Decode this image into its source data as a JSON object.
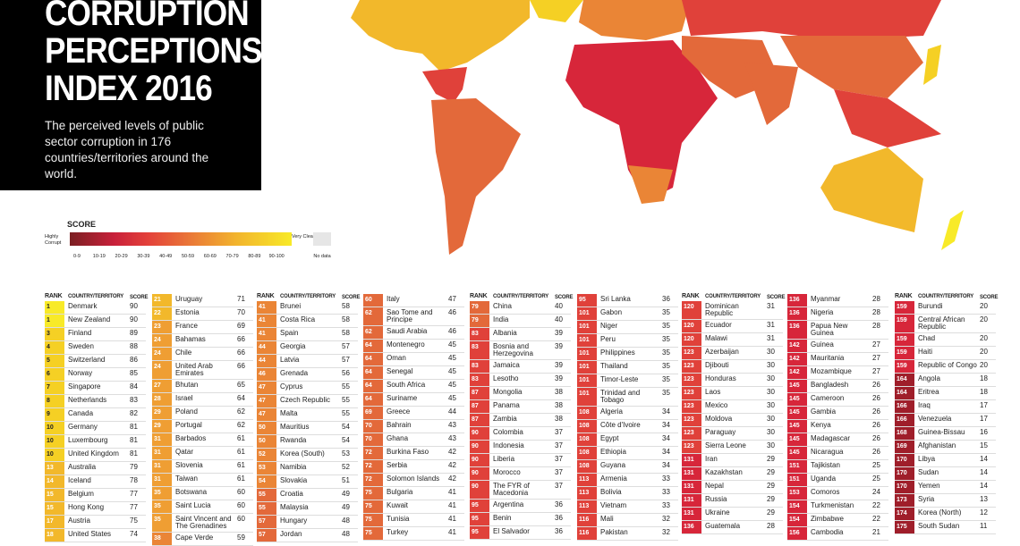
{
  "title": "CORRUPTION PERCEPTIONS INDEX 2016",
  "subtitle": "The perceived levels of public sector corruption in 176 countries/territories around the world.",
  "legend": {
    "title": "SCORE",
    "low": "Highly Corrupt",
    "high": "Very Clean",
    "no_data": "No data",
    "ranges": [
      "0-9",
      "10-19",
      "20-29",
      "30-39",
      "40-49",
      "50-59",
      "60-69",
      "70-79",
      "80-89",
      "90-100"
    ],
    "colors": [
      "#7b1f22",
      "#9f1e2a",
      "#d7263a",
      "#e0413a",
      "#e3693a",
      "#ea8536",
      "#ef9e33",
      "#f2b82b",
      "#f5d024",
      "#f8ea28"
    ],
    "no_data_color": "#e6e6e6"
  },
  "table": {
    "headers": {
      "rank": "RANK",
      "country": "COUNTRY/TERRITORY",
      "score": "SCORE"
    },
    "columns": [
      [
        [
          "1",
          "Denmark",
          90
        ],
        [
          "1",
          "New Zealand",
          90
        ],
        [
          "3",
          "Finland",
          89
        ],
        [
          "4",
          "Sweden",
          88
        ],
        [
          "5",
          "Switzerland",
          86
        ],
        [
          "6",
          "Norway",
          85
        ],
        [
          "7",
          "Singapore",
          84
        ],
        [
          "8",
          "Netherlands",
          83
        ],
        [
          "9",
          "Canada",
          82
        ],
        [
          "10",
          "Germany",
          81
        ],
        [
          "10",
          "Luxembourg",
          81
        ],
        [
          "10",
          "United Kingdom",
          81
        ],
        [
          "13",
          "Australia",
          79
        ],
        [
          "14",
          "Iceland",
          78
        ],
        [
          "15",
          "Belgium",
          77
        ],
        [
          "15",
          "Hong Kong",
          77
        ],
        [
          "17",
          "Austria",
          75
        ],
        [
          "18",
          "United States",
          74
        ]
      ],
      [
        [
          "21",
          "Uruguay",
          71
        ],
        [
          "22",
          "Estonia",
          70
        ],
        [
          "23",
          "France",
          69
        ],
        [
          "24",
          "Bahamas",
          66
        ],
        [
          "24",
          "Chile",
          66
        ],
        [
          "24",
          "United Arab Emirates",
          66
        ],
        [
          "27",
          "Bhutan",
          65
        ],
        [
          "28",
          "Israel",
          64
        ],
        [
          "29",
          "Poland",
          62
        ],
        [
          "29",
          "Portugal",
          62
        ],
        [
          "31",
          "Barbados",
          61
        ],
        [
          "31",
          "Qatar",
          61
        ],
        [
          "31",
          "Slovenia",
          61
        ],
        [
          "31",
          "Taiwan",
          61
        ],
        [
          "35",
          "Botswana",
          60
        ],
        [
          "35",
          "Saint Lucia",
          60
        ],
        [
          "35",
          "Saint Vincent and The Grenadines",
          60
        ],
        [
          "38",
          "Cape Verde",
          59
        ]
      ],
      [
        [
          "41",
          "Brunei",
          58
        ],
        [
          "41",
          "Costa Rica",
          58
        ],
        [
          "41",
          "Spain",
          58
        ],
        [
          "44",
          "Georgia",
          57
        ],
        [
          "44",
          "Latvia",
          57
        ],
        [
          "46",
          "Grenada",
          56
        ],
        [
          "47",
          "Cyprus",
          55
        ],
        [
          "47",
          "Czech Republic",
          55
        ],
        [
          "47",
          "Malta",
          55
        ],
        [
          "50",
          "Mauritius",
          54
        ],
        [
          "50",
          "Rwanda",
          54
        ],
        [
          "52",
          "Korea (South)",
          53
        ],
        [
          "53",
          "Namibia",
          52
        ],
        [
          "54",
          "Slovakia",
          51
        ],
        [
          "55",
          "Croatia",
          49
        ],
        [
          "55",
          "Malaysia",
          49
        ],
        [
          "57",
          "Hungary",
          48
        ],
        [
          "57",
          "Jordan",
          48
        ]
      ],
      [
        [
          "60",
          "Italy",
          47
        ],
        [
          "62",
          "Sao Tome and Principe",
          46
        ],
        [
          "62",
          "Saudi Arabia",
          46
        ],
        [
          "64",
          "Montenegro",
          45
        ],
        [
          "64",
          "Oman",
          45
        ],
        [
          "64",
          "Senegal",
          45
        ],
        [
          "64",
          "South Africa",
          45
        ],
        [
          "64",
          "Suriname",
          45
        ],
        [
          "69",
          "Greece",
          44
        ],
        [
          "70",
          "Bahrain",
          43
        ],
        [
          "70",
          "Ghana",
          43
        ],
        [
          "72",
          "Burkina Faso",
          42
        ],
        [
          "72",
          "Serbia",
          42
        ],
        [
          "72",
          "Solomon Islands",
          42
        ],
        [
          "75",
          "Bulgaria",
          41
        ],
        [
          "75",
          "Kuwait",
          41
        ],
        [
          "75",
          "Tunisia",
          41
        ],
        [
          "75",
          "Turkey",
          41
        ]
      ],
      [
        [
          "79",
          "China",
          40
        ],
        [
          "79",
          "India",
          40
        ],
        [
          "83",
          "Albania",
          39
        ],
        [
          "83",
          "Bosnia and Herzegovina",
          39
        ],
        [
          "83",
          "Jamaica",
          39
        ],
        [
          "83",
          "Lesotho",
          39
        ],
        [
          "87",
          "Mongolia",
          38
        ],
        [
          "87",
          "Panama",
          38
        ],
        [
          "87",
          "Zambia",
          38
        ],
        [
          "90",
          "Colombia",
          37
        ],
        [
          "90",
          "Indonesia",
          37
        ],
        [
          "90",
          "Liberia",
          37
        ],
        [
          "90",
          "Morocco",
          37
        ],
        [
          "90",
          "The FYR of Macedonia",
          37
        ],
        [
          "95",
          "Argentina",
          36
        ],
        [
          "95",
          "Benin",
          36
        ],
        [
          "95",
          "El Salvador",
          36
        ]
      ],
      [
        [
          "95",
          "Sri Lanka",
          36
        ],
        [
          "101",
          "Gabon",
          35
        ],
        [
          "101",
          "Niger",
          35
        ],
        [
          "101",
          "Peru",
          35
        ],
        [
          "101",
          "Philippines",
          35
        ],
        [
          "101",
          "Thailand",
          35
        ],
        [
          "101",
          "Timor-Leste",
          35
        ],
        [
          "101",
          "Trinidad and Tobago",
          35
        ],
        [
          "108",
          "Algeria",
          34
        ],
        [
          "108",
          "Côte d'Ivoire",
          34
        ],
        [
          "108",
          "Egypt",
          34
        ],
        [
          "108",
          "Ethiopia",
          34
        ],
        [
          "108",
          "Guyana",
          34
        ],
        [
          "113",
          "Armenia",
          33
        ],
        [
          "113",
          "Bolivia",
          33
        ],
        [
          "113",
          "Vietnam",
          33
        ],
        [
          "116",
          "Mali",
          32
        ],
        [
          "116",
          "Pakistan",
          32
        ]
      ],
      [
        [
          "120",
          "Dominican Republic",
          31
        ],
        [
          "120",
          "Ecuador",
          31
        ],
        [
          "120",
          "Malawi",
          31
        ],
        [
          "123",
          "Azerbaijan",
          30
        ],
        [
          "123",
          "Djibouti",
          30
        ],
        [
          "123",
          "Honduras",
          30
        ],
        [
          "123",
          "Laos",
          30
        ],
        [
          "123",
          "Mexico",
          30
        ],
        [
          "123",
          "Moldova",
          30
        ],
        [
          "123",
          "Paraguay",
          30
        ],
        [
          "123",
          "Sierra Leone",
          30
        ],
        [
          "131",
          "Iran",
          29
        ],
        [
          "131",
          "Kazakhstan",
          29
        ],
        [
          "131",
          "Nepal",
          29
        ],
        [
          "131",
          "Russia",
          29
        ],
        [
          "131",
          "Ukraine",
          29
        ],
        [
          "136",
          "Guatemala",
          28
        ]
      ],
      [
        [
          "136",
          "Myanmar",
          28
        ],
        [
          "136",
          "Nigeria",
          28
        ],
        [
          "136",
          "Papua New Guinea",
          28
        ],
        [
          "142",
          "Guinea",
          27
        ],
        [
          "142",
          "Mauritania",
          27
        ],
        [
          "142",
          "Mozambique",
          27
        ],
        [
          "145",
          "Bangladesh",
          26
        ],
        [
          "145",
          "Cameroon",
          26
        ],
        [
          "145",
          "Gambia",
          26
        ],
        [
          "145",
          "Kenya",
          26
        ],
        [
          "145",
          "Madagascar",
          26
        ],
        [
          "145",
          "Nicaragua",
          26
        ],
        [
          "151",
          "Tajikistan",
          25
        ],
        [
          "151",
          "Uganda",
          25
        ],
        [
          "153",
          "Comoros",
          24
        ],
        [
          "154",
          "Turkmenistan",
          22
        ],
        [
          "154",
          "Zimbabwe",
          22
        ],
        [
          "156",
          "Cambodia",
          21
        ]
      ],
      [
        [
          "159",
          "Burundi",
          20
        ],
        [
          "159",
          "Central African Republic",
          20
        ],
        [
          "159",
          "Chad",
          20
        ],
        [
          "159",
          "Haiti",
          20
        ],
        [
          "159",
          "Republic of Congo",
          20
        ],
        [
          "164",
          "Angola",
          18
        ],
        [
          "164",
          "Eritrea",
          18
        ],
        [
          "166",
          "Iraq",
          17
        ],
        [
          "166",
          "Venezuela",
          17
        ],
        [
          "168",
          "Guinea-Bissau",
          16
        ],
        [
          "169",
          "Afghanistan",
          15
        ],
        [
          "170",
          "Libya",
          14
        ],
        [
          "170",
          "Sudan",
          14
        ],
        [
          "170",
          "Yemen",
          14
        ],
        [
          "173",
          "Syria",
          13
        ],
        [
          "174",
          "Korea (North)",
          12
        ],
        [
          "175",
          "South Sudan",
          11
        ]
      ]
    ]
  }
}
